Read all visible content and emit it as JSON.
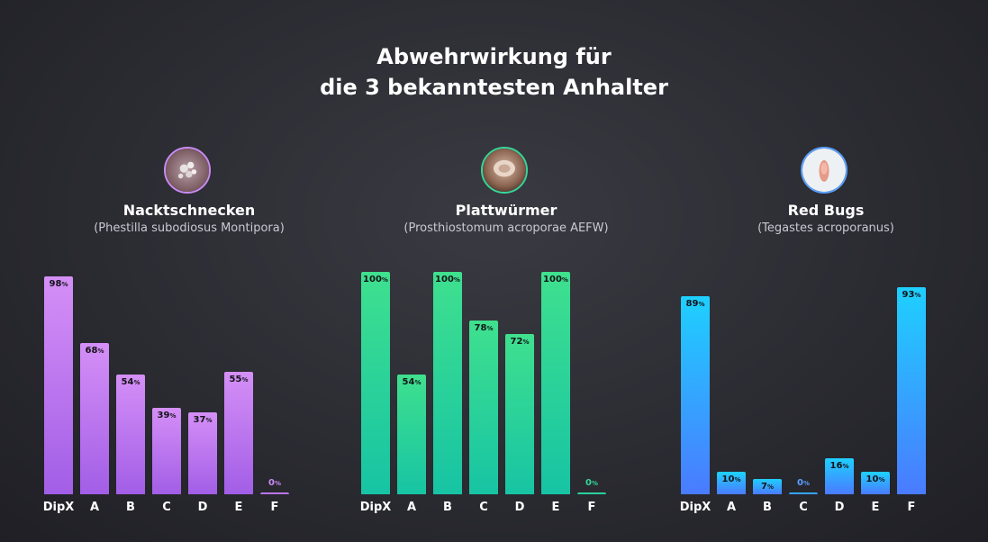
{
  "title_line1": "Abwehrwirkung für",
  "title_line2": "die 3 bekanntesten Anhalter",
  "value_unit": "%",
  "chart_data": [
    {
      "type": "bar",
      "title": "Nacktschnecken",
      "subtitle": "(Phestilla subodiosus Montipora)",
      "categories": [
        "DipX",
        "A",
        "B",
        "C",
        "D",
        "E",
        "F"
      ],
      "values": [
        98,
        68,
        54,
        39,
        37,
        55,
        0
      ],
      "ylim": [
        0,
        100
      ],
      "color_top": "#d58ff7",
      "color_bottom": "#a25ee6",
      "accent": "#c98cf5",
      "icon": "nudibranch-photo-icon"
    },
    {
      "type": "bar",
      "title": "Plattwürmer",
      "subtitle": "(Prosthiostomum acroporae AEFW)",
      "categories": [
        "DipX",
        "A",
        "B",
        "C",
        "D",
        "E",
        "F"
      ],
      "values": [
        100,
        54,
        100,
        78,
        72,
        100,
        0
      ],
      "ylim": [
        0,
        100
      ],
      "color_top": "#3fe08e",
      "color_bottom": "#17c4a4",
      "accent": "#36d69a",
      "icon": "flatworm-photo-icon"
    },
    {
      "type": "bar",
      "title": "Red Bugs",
      "subtitle": "(Tegastes acroporanus)",
      "categories": [
        "DipX",
        "A",
        "B",
        "C",
        "D",
        "E",
        "F"
      ],
      "values": [
        89,
        10,
        7,
        0,
        16,
        10,
        93
      ],
      "ylim": [
        0,
        100
      ],
      "color_top": "#1ed0ff",
      "color_bottom": "#4a7bff",
      "accent": "#5aa0ff",
      "icon": "red-bug-photo-icon"
    }
  ]
}
